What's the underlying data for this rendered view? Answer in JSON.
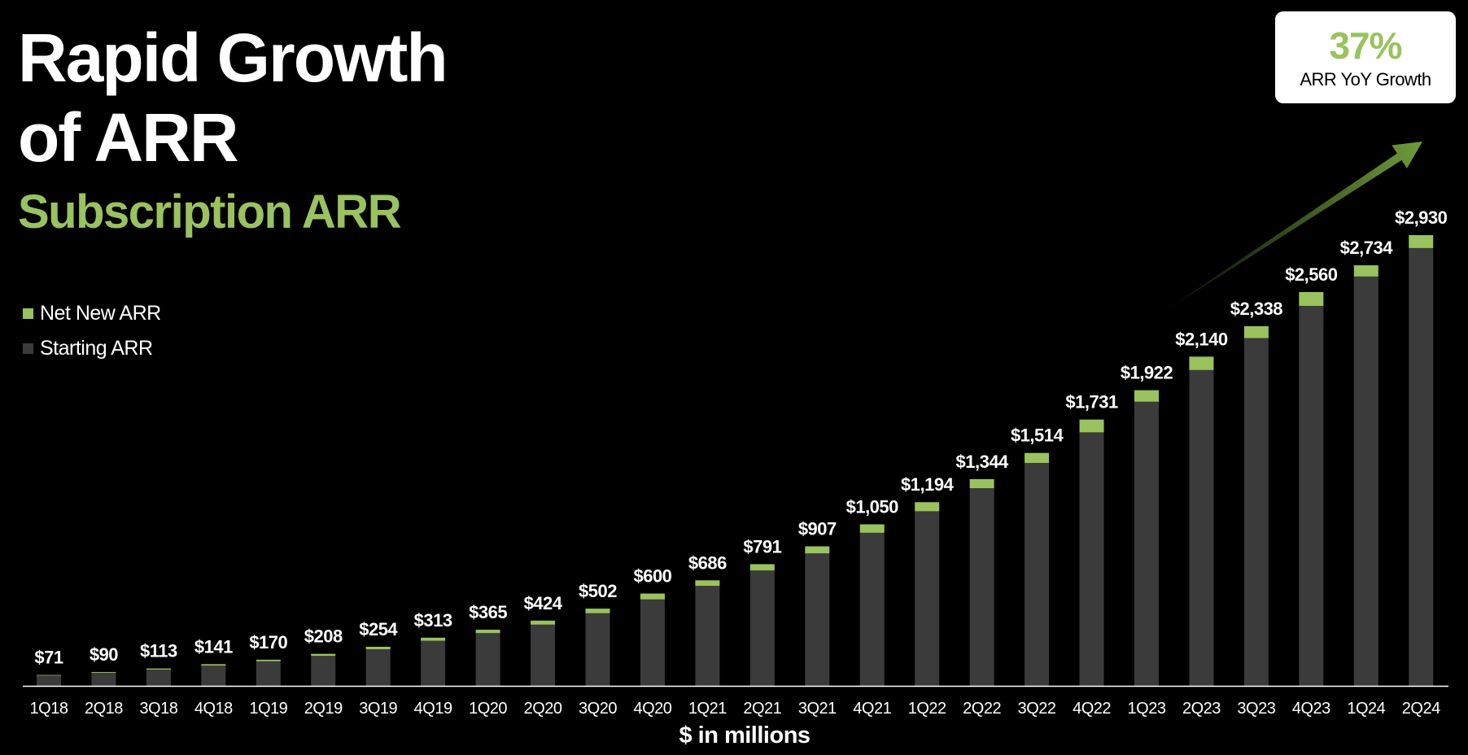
{
  "page": {
    "title_line1": "Rapid Growth",
    "title_line2": "of ARR",
    "subtitle": "Subscription ARR"
  },
  "badge": {
    "value": "37%",
    "label": "ARR YoY Growth"
  },
  "colors": {
    "net_new": "#9ac25f",
    "starting": "#3a3b3a",
    "arrow": "#6e9a3a"
  },
  "chart_data": {
    "type": "bar",
    "stacked": true,
    "xlabel": "$ in millions",
    "ylabel": "",
    "ylim": [
      0,
      2930
    ],
    "grid": false,
    "legend_position": "left",
    "categories": [
      "1Q18",
      "2Q18",
      "3Q18",
      "4Q18",
      "1Q19",
      "2Q19",
      "3Q19",
      "4Q19",
      "1Q20",
      "2Q20",
      "3Q20",
      "4Q20",
      "1Q21",
      "2Q21",
      "3Q21",
      "4Q21",
      "1Q22",
      "2Q22",
      "3Q22",
      "4Q22",
      "1Q23",
      "2Q23",
      "3Q23",
      "4Q23",
      "1Q24",
      "2Q24"
    ],
    "totals": [
      71,
      90,
      113,
      141,
      170,
      208,
      254,
      313,
      365,
      424,
      502,
      600,
      686,
      791,
      907,
      1050,
      1194,
      1344,
      1514,
      1731,
      1922,
      2140,
      2338,
      2560,
      2734,
      2930
    ],
    "total_labels": [
      "$71",
      "$90",
      "$113",
      "$141",
      "$170",
      "$208",
      "$254",
      "$313",
      "$365",
      "$424",
      "$502",
      "$600",
      "$686",
      "$791",
      "$907",
      "$1,050",
      "$1,194",
      "$1,344",
      "$1,514",
      "$1,731",
      "$1,922",
      "$2,140",
      "$2,338",
      "$2,560",
      "$2,734",
      "$2,930"
    ],
    "series": [
      {
        "name": "Net New ARR",
        "values": [
          4,
          5,
          7,
          9,
          10,
          13,
          16,
          20,
          22,
          26,
          30,
          38,
          36,
          41,
          46,
          55,
          59,
          59,
          65,
          83,
          75,
          87,
          77,
          90,
          73,
          84
        ]
      },
      {
        "name": "Starting ARR",
        "values": [
          67,
          85,
          106,
          132,
          160,
          195,
          238,
          293,
          343,
          398,
          472,
          562,
          650,
          750,
          861,
          995,
          1135,
          1285,
          1449,
          1648,
          1847,
          2053,
          2261,
          2470,
          2661,
          2846
        ]
      }
    ]
  }
}
